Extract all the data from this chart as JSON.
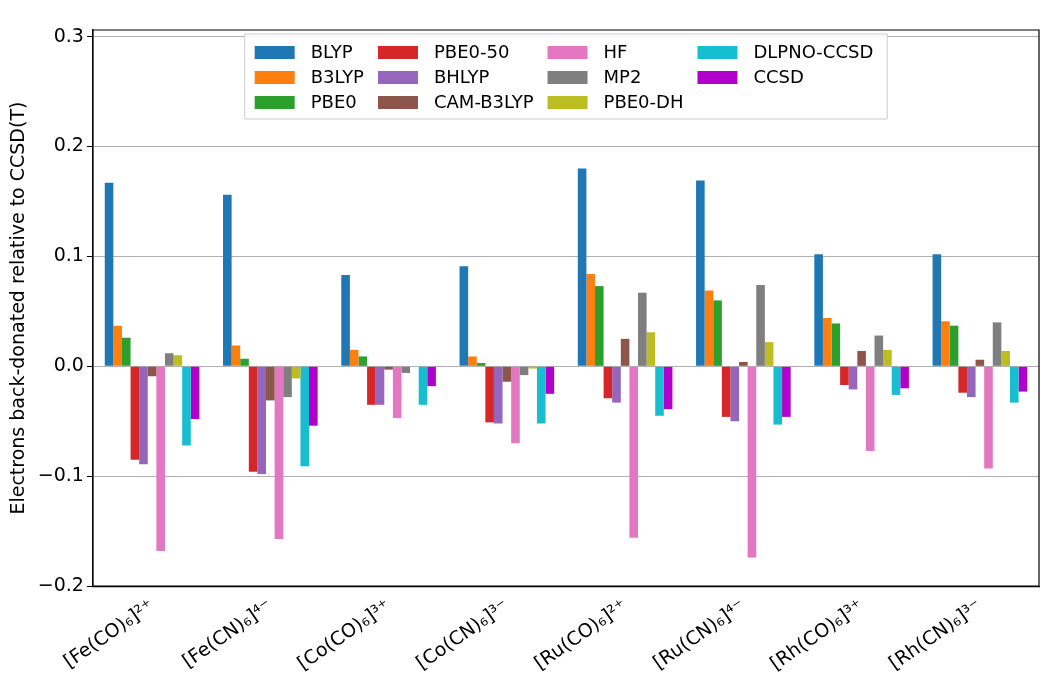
{
  "chart_data": {
    "type": "bar",
    "ylabel": "Electrons back-donated relative to CCSD(T)",
    "categories": [
      "[Fe(CO)₆]²⁺",
      "[Fe(CN)₆]⁴⁻",
      "[Co(CO)₆]³⁺",
      "[Co(CN)₆]³⁻",
      "[Ru(CO)₆]²⁺",
      "[Ru(CN)₆]⁴⁻",
      "[Rh(CO)₆]³⁺",
      "[Rh(CN)₆]³⁻"
    ],
    "series": [
      {
        "name": "BLYP",
        "color": "#1f77b4",
        "values": [
          0.167,
          0.156,
          0.083,
          0.091,
          0.18,
          0.169,
          0.102,
          0.102
        ]
      },
      {
        "name": "B3LYP",
        "color": "#ff7f0e",
        "values": [
          0.037,
          0.019,
          0.015,
          0.009,
          0.084,
          0.069,
          0.044,
          0.041
        ]
      },
      {
        "name": "PBE0",
        "color": "#2ca02c",
        "values": [
          0.026,
          0.007,
          0.009,
          0.003,
          0.073,
          0.06,
          0.039,
          0.037
        ]
      },
      {
        "name": "PBE0-50",
        "color": "#d62728",
        "values": [
          -0.085,
          -0.096,
          -0.035,
          -0.051,
          -0.029,
          -0.046,
          -0.017,
          -0.024
        ]
      },
      {
        "name": "BHLYP",
        "color": "#9467bd",
        "values": [
          -0.089,
          -0.098,
          -0.035,
          -0.052,
          -0.033,
          -0.05,
          -0.021,
          -0.028
        ]
      },
      {
        "name": "CAM-B3LYP",
        "color": "#8c564b",
        "values": [
          -0.009,
          -0.031,
          -0.003,
          -0.014,
          0.025,
          0.004,
          0.014,
          0.006
        ]
      },
      {
        "name": "HF",
        "color": "#e377c2",
        "values": [
          -0.168,
          -0.157,
          -0.047,
          -0.07,
          -0.156,
          -0.174,
          -0.077,
          -0.093
        ]
      },
      {
        "name": "MP2",
        "color": "#7f7f7f",
        "values": [
          0.012,
          -0.028,
          -0.006,
          -0.008,
          0.067,
          0.074,
          0.028,
          0.04
        ]
      },
      {
        "name": "PBE0-DH",
        "color": "#bcbd22",
        "values": [
          0.01,
          -0.011,
          null,
          -0.002,
          0.031,
          0.022,
          0.015,
          0.014
        ]
      },
      {
        "name": "DLPNO-CCSD",
        "color": "#17becf",
        "values": [
          -0.072,
          -0.091,
          -0.035,
          -0.052,
          -0.045,
          -0.053,
          -0.026,
          -0.033
        ]
      },
      {
        "name": "CCSD",
        "color": "#b200cc",
        "values": [
          -0.048,
          -0.054,
          -0.018,
          -0.025,
          -0.039,
          -0.046,
          -0.02,
          -0.023
        ]
      }
    ],
    "ylim": [
      -0.2,
      0.306
    ],
    "yticks": [
      {
        "value": -0.2,
        "label": "−0.2"
      },
      {
        "value": -0.1,
        "label": "−0.1"
      },
      {
        "value": 0,
        "label": "0.0"
      },
      0.1,
      0.2,
      0.3
    ],
    "grid": "y",
    "legend": "top"
  }
}
